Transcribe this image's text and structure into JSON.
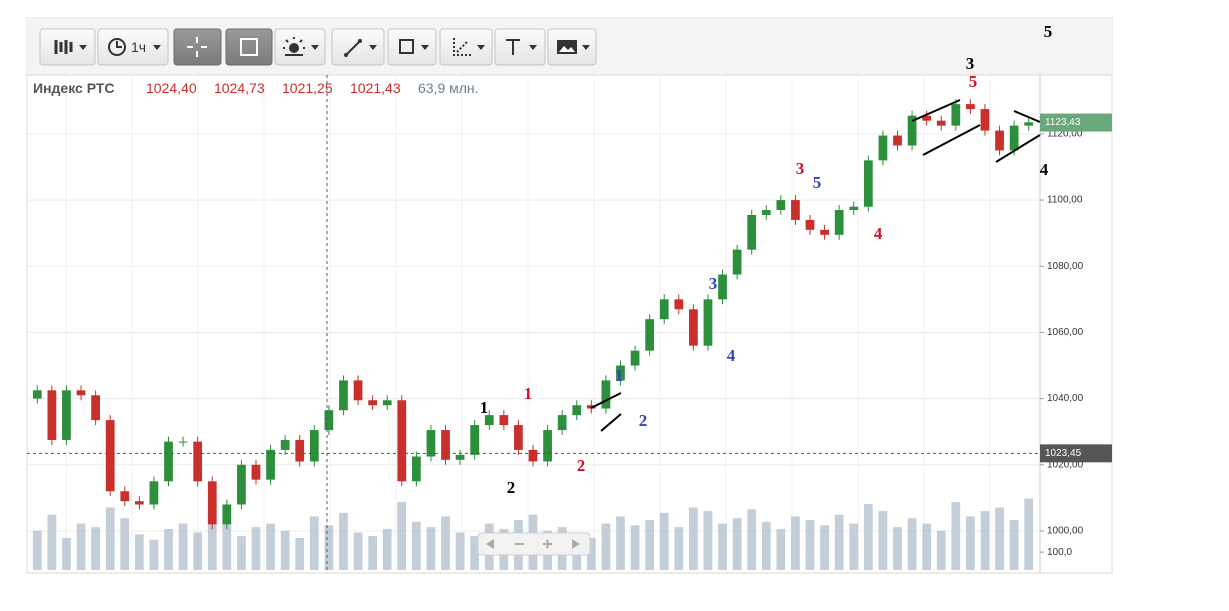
{
  "toolbar": {
    "interval": "1ч"
  },
  "info": {
    "title": "Индекс РТС",
    "open": "1024,40",
    "high": "1024,73",
    "low": "1021,25",
    "close": "1021,43",
    "volume": "63,9 млн."
  },
  "chart_data": {
    "type": "candlestick",
    "open": [
      1040,
      1042.5,
      1027.5,
      1042.5,
      1041,
      1033.5,
      1012,
      1009,
      1008,
      1015,
      1027,
      1027,
      1015,
      1002,
      1008,
      1020,
      1015.5,
      1024.5,
      1027.5,
      1021,
      1030.5,
      1036.5,
      1045.5,
      1039.5,
      1038,
      1039.5,
      1015,
      1022.5,
      1030.5,
      1021.5,
      1023,
      1032,
      1035,
      1032,
      1024.5,
      1021,
      1030.5,
      1035,
      1038,
      1037,
      1045.5,
      1050,
      1054.5,
      1064,
      1070,
      1067,
      1056,
      1070,
      1077.5,
      1085,
      1095.5,
      1097,
      1100,
      1094,
      1091,
      1089.5,
      1097,
      1098,
      1112,
      1119.5,
      1116.5,
      1125.5,
      1124,
      1122.5,
      1129,
      1127.5,
      1121,
      1115,
      1122.5
    ],
    "high": [
      1044,
      1044,
      1044,
      1044,
      1042.5,
      1035,
      1013.5,
      1010.5,
      1016.5,
      1028.5,
      1028.5,
      1028.5,
      1016.5,
      1009.5,
      1021.5,
      1021.5,
      1026,
      1029,
      1029,
      1032,
      1038,
      1047,
      1047,
      1041,
      1041,
      1041,
      1024,
      1032,
      1032,
      1024.5,
      1033.5,
      1036.5,
      1036.5,
      1033.5,
      1026,
      1032,
      1036.5,
      1039.5,
      1039.5,
      1047,
      1051.5,
      1056,
      1065.5,
      1071.5,
      1071.5,
      1068.5,
      1071.5,
      1079,
      1086.5,
      1097,
      1098.5,
      1101.5,
      1101.5,
      1095.5,
      1092.5,
      1098.5,
      1099.5,
      1113.5,
      1121,
      1121,
      1127,
      1127,
      1125.5,
      1130.5,
      1130.5,
      1129,
      1122.5,
      1124,
      1125
    ],
    "low": [
      1038.5,
      1026,
      1026,
      1039.5,
      1032,
      1010.5,
      1007.5,
      1006.5,
      1006.5,
      1013.5,
      1025.5,
      1013.5,
      1000.5,
      1000.5,
      1006.5,
      1014,
      1014,
      1023,
      1019.5,
      1019.5,
      1029,
      1035,
      1038,
      1036.5,
      1036.5,
      1013.5,
      1013.5,
      1021,
      1020,
      1020,
      1021.5,
      1030.5,
      1030.5,
      1023,
      1019.5,
      1019.5,
      1029,
      1033.5,
      1035.5,
      1035.5,
      1044,
      1048.5,
      1053,
      1062.5,
      1065.5,
      1054.5,
      1054.5,
      1068.5,
      1076,
      1083.5,
      1094,
      1095.5,
      1092.5,
      1089.5,
      1088,
      1088,
      1095.5,
      1096.5,
      1110.5,
      1115,
      1115,
      1122.5,
      1121,
      1121,
      1126,
      1119.5,
      1113.5,
      1113.5,
      1121
    ],
    "close": [
      1042.5,
      1027.5,
      1042.5,
      1041,
      1033.5,
      1012,
      1009,
      1008,
      1015,
      1027,
      1027,
      1015,
      1002,
      1008,
      1020,
      1015.5,
      1024.5,
      1027.5,
      1021,
      1030.5,
      1036.5,
      1045.5,
      1039.5,
      1038,
      1039.5,
      1015,
      1022.5,
      1030.5,
      1021.5,
      1023,
      1032,
      1035,
      1032,
      1024.5,
      1021,
      1030.5,
      1035,
      1038,
      1037,
      1045.5,
      1050,
      1054.5,
      1064,
      1070,
      1067,
      1056,
      1070,
      1077.5,
      1085,
      1095.5,
      1097,
      1100,
      1094,
      1091,
      1089.5,
      1097,
      1098,
      1112,
      1119.5,
      1116.5,
      1125.5,
      1124,
      1122.5,
      1129,
      1127.5,
      1121,
      1115,
      1122.5,
      1123.5
    ],
    "volume": [
      220,
      310,
      180,
      260,
      240,
      350,
      290,
      200,
      170,
      230,
      260,
      210,
      330,
      280,
      190,
      240,
      260,
      220,
      180,
      300,
      250,
      320,
      210,
      190,
      230,
      380,
      270,
      240,
      300,
      210,
      190,
      260,
      230,
      280,
      310,
      220,
      240,
      200,
      180,
      260,
      300,
      250,
      280,
      320,
      240,
      350,
      330,
      260,
      290,
      340,
      270,
      230,
      300,
      280,
      250,
      310,
      260,
      370,
      330,
      240,
      290,
      260,
      220,
      380,
      300,
      330,
      350,
      280,
      400
    ],
    "up_color": "#2b8f3c",
    "down_color": "#c9302c",
    "volume_color": "#b4c2d0",
    "ylim": [
      988.2,
      1137.8
    ],
    "yticks": [
      {
        "value": 1000,
        "label": "1000,00"
      },
      {
        "value": 1020,
        "label": "1020,00"
      },
      {
        "value": 1040,
        "label": "1040,00"
      },
      {
        "value": 1060,
        "label": "1060,00"
      },
      {
        "value": 1080,
        "label": "1080,00"
      },
      {
        "value": 1100,
        "label": "1100,00"
      },
      {
        "value": 1120,
        "label": "1120,00"
      }
    ],
    "volume_lim": [
      0,
      560
    ],
    "volume_ticks": [
      {
        "value": 100,
        "label": "100,0"
      }
    ],
    "last_price": {
      "value": 1123.43,
      "label": "1123,43"
    },
    "crosshair_price": {
      "value": 1023.45,
      "label": "1023,45"
    },
    "grid": true,
    "annotations": [
      {
        "text": "5",
        "color": "#000000"
      },
      {
        "text": "3",
        "color": "#000000"
      },
      {
        "text": "5",
        "color": "#d0102a"
      },
      {
        "text": "4",
        "color": "#000000"
      },
      {
        "text": "3",
        "color": "#d0102a"
      },
      {
        "text": "5",
        "color": "#3344bb"
      },
      {
        "text": "4",
        "color": "#d0102a"
      },
      {
        "text": "3",
        "color": "#3344bb"
      },
      {
        "text": "4",
        "color": "#3344bb"
      },
      {
        "text": "1",
        "color": "#3344bb"
      },
      {
        "text": "2",
        "color": "#3344bb"
      },
      {
        "text": "1",
        "color": "#000000"
      },
      {
        "text": "2",
        "color": "#000000"
      },
      {
        "text": "1",
        "color": "#d0102a"
      },
      {
        "text": "2",
        "color": "#d0102a"
      }
    ]
  }
}
